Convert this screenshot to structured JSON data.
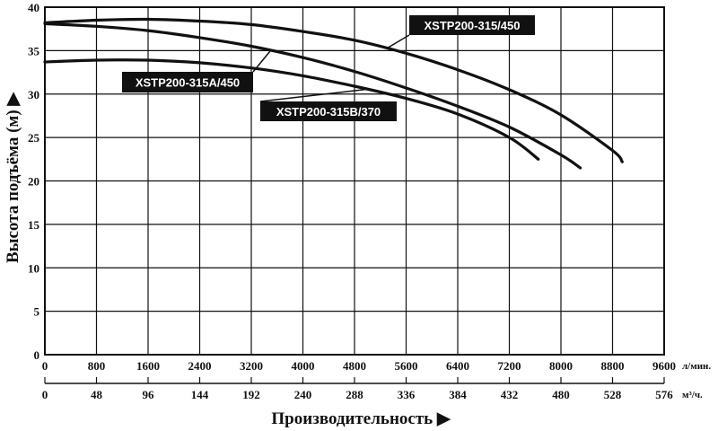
{
  "chart_data": {
    "type": "line",
    "title": "",
    "ylabel": "Высота подъёма (м) ▶",
    "xlabel": "Производительность ▶",
    "ylim": [
      0,
      40
    ],
    "xlim": [
      0,
      9600
    ],
    "grid": true,
    "x_unit_primary": "л/мин.",
    "x_unit_secondary": "м³/ч.",
    "x_ticks": [
      "0",
      "800",
      "1600",
      "2400",
      "3200",
      "4000",
      "4800",
      "5600",
      "6400",
      "7200",
      "8000",
      "8800",
      "9600"
    ],
    "x2_ticks": [
      "0",
      "48",
      "96",
      "144",
      "192",
      "240",
      "288",
      "336",
      "384",
      "432",
      "480",
      "528",
      "576"
    ],
    "y_ticks": [
      "0",
      "5",
      "10",
      "15",
      "20",
      "25",
      "30",
      "35",
      "40"
    ],
    "series": [
      {
        "name": "XSTP200-315/450",
        "x": [
          0,
          800,
          1600,
          2400,
          3200,
          4000,
          4800,
          5600,
          6400,
          7200,
          8000,
          8800,
          8950
        ],
        "y": [
          38.2,
          38.5,
          38.6,
          38.4,
          38.0,
          37.2,
          36.2,
          34.7,
          32.8,
          30.5,
          27.6,
          23.5,
          22.2
        ]
      },
      {
        "name": "XSTP200-315A/450",
        "x": [
          0,
          800,
          1600,
          2400,
          3200,
          4000,
          4800,
          5600,
          6400,
          7200,
          8000,
          8300
        ],
        "y": [
          38.1,
          37.8,
          37.3,
          36.5,
          35.5,
          34.2,
          32.6,
          30.7,
          28.6,
          26.2,
          23.0,
          21.5
        ]
      },
      {
        "name": "XSTP200-315B/370",
        "x": [
          0,
          800,
          1600,
          2400,
          3200,
          4000,
          4800,
          5600,
          6400,
          7200,
          7650
        ],
        "y": [
          33.7,
          33.9,
          33.9,
          33.6,
          33.0,
          32.1,
          30.9,
          29.5,
          27.7,
          25.0,
          22.5
        ]
      }
    ]
  }
}
